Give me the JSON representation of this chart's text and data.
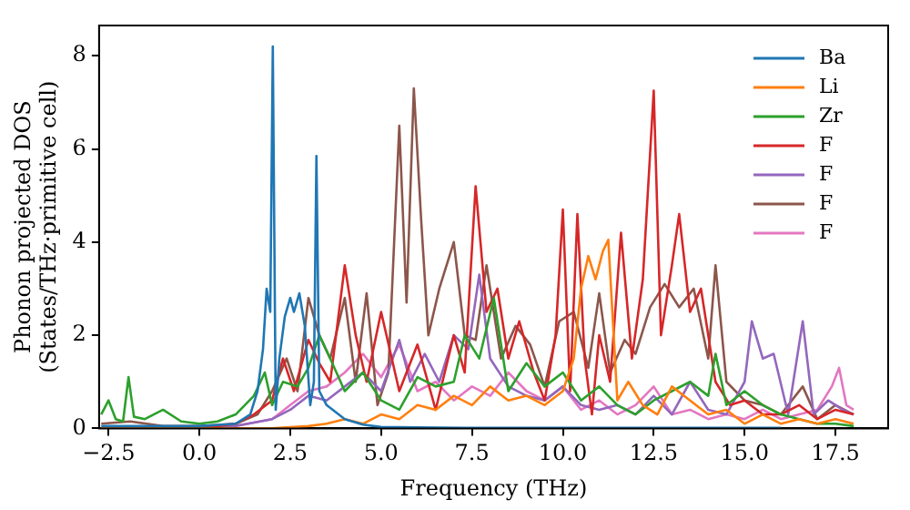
{
  "chart_data": {
    "type": "line",
    "xlabel": "Frequency (THz)",
    "ylabel": "Phonon projected DOS\n(States/THz·primitive cell)",
    "xlim": [
      -2.76,
      18.95
    ],
    "ylim": [
      0,
      8.65
    ],
    "xticks": [
      {
        "value": -2.5,
        "label": "−2.5"
      },
      {
        "value": 0,
        "label": "0.0"
      },
      {
        "value": 2.5,
        "label": "2.5"
      },
      {
        "value": 5,
        "label": "5.0"
      },
      {
        "value": 7.5,
        "label": "7.5"
      },
      {
        "value": 10,
        "label": "10.0"
      },
      {
        "value": 12.5,
        "label": "12.5"
      },
      {
        "value": 15,
        "label": "15.0"
      },
      {
        "value": 17.5,
        "label": "17.5"
      }
    ],
    "yticks": [
      0,
      2,
      4,
      6,
      8
    ],
    "grid": false,
    "legend": "top right",
    "marker": "none",
    "line_style": "solid",
    "series": [
      {
        "name": "Ba",
        "color": "#1f77b4",
        "x": [
          -2.7,
          -1,
          0,
          1,
          1.4,
          1.6,
          1.75,
          1.85,
          1.95,
          2.02,
          2.1,
          2.2,
          2.35,
          2.5,
          2.6,
          2.75,
          2.9,
          3.05,
          3.15,
          3.22,
          3.3,
          3.5,
          4,
          4.5,
          5,
          6,
          8,
          10,
          12,
          14,
          16
        ],
        "values": [
          0.05,
          0.05,
          0.05,
          0.1,
          0.3,
          0.8,
          1.7,
          3.0,
          2.5,
          8.2,
          0.4,
          1.5,
          2.4,
          2.8,
          2.5,
          2.9,
          2.2,
          0.5,
          1.0,
          5.85,
          0.8,
          0.5,
          0.2,
          0.08,
          0.03,
          0.02,
          0.01,
          0.01,
          0.01,
          0.01,
          0.01
        ]
      },
      {
        "name": "Li",
        "color": "#ff7f0e",
        "x": [
          -2.7,
          0,
          2,
          3,
          3.5,
          4,
          4.5,
          5,
          5.5,
          6,
          6.5,
          7,
          7.5,
          8,
          8.5,
          9,
          9.5,
          10,
          10.3,
          10.5,
          10.7,
          10.9,
          11.1,
          11.25,
          11.5,
          11.8,
          12.2,
          12.6,
          13,
          13.5,
          14,
          14.5,
          15,
          15.5,
          16,
          16.5,
          17,
          17.5,
          18
        ],
        "values": [
          0,
          0,
          0,
          0.05,
          0.1,
          0.2,
          0.1,
          0.3,
          0.2,
          0.5,
          0.4,
          0.7,
          0.5,
          0.9,
          0.6,
          0.7,
          0.5,
          0.8,
          1.5,
          3.0,
          3.7,
          3.2,
          3.8,
          4.05,
          0.6,
          1.0,
          0.5,
          0.3,
          0.9,
          0.6,
          0.3,
          0.4,
          0.1,
          0.3,
          0.1,
          0.2,
          0.1,
          0.2,
          0.1
        ]
      },
      {
        "name": "Zr",
        "color": "#2ca02c",
        "x": [
          -2.7,
          -2.5,
          -2.3,
          -2.1,
          -1.95,
          -1.8,
          -1.5,
          -1,
          -0.5,
          0,
          0.5,
          1,
          1.5,
          1.8,
          2.0,
          2.3,
          2.7,
          3.0,
          3.3,
          3.6,
          4,
          4.5,
          5,
          5.5,
          6,
          6.5,
          7,
          7.3,
          7.7,
          8.1,
          8.5,
          9,
          9.5,
          10,
          10.5,
          11,
          11.5,
          12,
          12.5,
          13,
          13.5,
          14,
          14.2,
          14.5,
          15,
          15.5,
          16,
          16.5,
          17,
          17.5,
          18
        ],
        "values": [
          0.3,
          0.6,
          0.2,
          0.15,
          1.1,
          0.25,
          0.2,
          0.4,
          0.15,
          0.1,
          0.15,
          0.3,
          0.7,
          1.2,
          0.5,
          1.0,
          0.9,
          1.3,
          2.0,
          1.5,
          0.8,
          1.2,
          0.6,
          0.4,
          1.1,
          0.9,
          1.0,
          2.0,
          1.5,
          2.8,
          0.8,
          1.4,
          0.9,
          1.2,
          0.6,
          0.9,
          0.5,
          0.3,
          0.6,
          0.8,
          1.0,
          0.7,
          1.6,
          0.5,
          0.8,
          0.5,
          0.3,
          0.2,
          0.1,
          0.1,
          0.05
        ]
      },
      {
        "name": "F",
        "color": "#d62728",
        "x": [
          -2.7,
          0,
          1,
          1.5,
          2.0,
          2.3,
          2.6,
          3.0,
          3.3,
          3.6,
          4.0,
          4.3,
          4.6,
          5.0,
          5.5,
          6.0,
          6.5,
          7.0,
          7.3,
          7.6,
          7.9,
          8.2,
          8.5,
          8.8,
          9.2,
          9.5,
          9.8,
          10.0,
          10.2,
          10.4,
          10.6,
          10.8,
          11.0,
          11.3,
          11.6,
          11.9,
          12.2,
          12.5,
          12.7,
          13.0,
          13.2,
          13.5,
          13.8,
          14.2,
          14.6,
          15,
          15.5,
          16,
          16.5,
          17,
          17.5,
          18
        ],
        "values": [
          0,
          0,
          0.1,
          0.3,
          0.6,
          1.5,
          0.8,
          1.9,
          1.4,
          1.0,
          3.5,
          2.0,
          1.0,
          2.5,
          0.8,
          1.8,
          0.4,
          2.0,
          1.2,
          5.2,
          2.5,
          3.0,
          1.5,
          2.3,
          1.2,
          0.6,
          2.0,
          4.7,
          0.8,
          4.6,
          1.5,
          0.3,
          2.0,
          1.0,
          4.2,
          1.5,
          3.2,
          7.25,
          2.0,
          3.5,
          4.6,
          2.5,
          3.0,
          1.0,
          0.5,
          0.6,
          0.3,
          0.3,
          0.5,
          0.2,
          0.4,
          0.3
        ]
      },
      {
        "name": "F",
        "color": "#9467bd",
        "x": [
          -2.7,
          0,
          1,
          2.0,
          2.5,
          3.0,
          3.5,
          4.0,
          4.5,
          5.0,
          5.5,
          5.8,
          6.2,
          6.6,
          7.0,
          7.4,
          7.7,
          8.0,
          8.5,
          9,
          9.5,
          10,
          10.5,
          11,
          11.5,
          12,
          12.5,
          13,
          13.5,
          14,
          14.5,
          15.0,
          15.2,
          15.5,
          15.8,
          16.2,
          16.6,
          16.9,
          17.3,
          17.7,
          18
        ],
        "values": [
          0,
          0,
          0.05,
          0.2,
          0.4,
          0.7,
          0.6,
          0.9,
          1.2,
          0.8,
          1.9,
          1.0,
          1.6,
          1.0,
          2.0,
          1.7,
          3.3,
          1.5,
          0.9,
          0.7,
          0.6,
          0.9,
          0.5,
          0.4,
          0.5,
          0.3,
          0.7,
          0.3,
          1.0,
          0.4,
          0.3,
          1.0,
          2.3,
          1.5,
          1.6,
          0.3,
          2.3,
          0.3,
          0.6,
          0.4,
          0.3
        ]
      },
      {
        "name": "F",
        "color": "#8c564b",
        "x": [
          -2.7,
          -1.9,
          -1,
          0,
          1,
          1.6,
          2.0,
          2.4,
          2.7,
          3.0,
          3.3,
          3.6,
          4.0,
          4.3,
          4.6,
          4.9,
          5.2,
          5.5,
          5.7,
          5.9,
          6.1,
          6.3,
          6.6,
          7.0,
          7.3,
          7.6,
          7.9,
          8.3,
          8.7,
          9.1,
          9.5,
          9.9,
          10.3,
          10.7,
          11.0,
          11.3,
          11.7,
          12.0,
          12.4,
          12.8,
          13.2,
          13.6,
          14.0,
          14.2,
          14.5,
          15,
          15.5,
          16,
          16.6,
          17,
          17.5,
          18
        ],
        "values": [
          0.1,
          0.15,
          0.05,
          0.05,
          0.1,
          0.3,
          0.8,
          1.5,
          0.8,
          2.8,
          2.0,
          1.5,
          2.8,
          1.0,
          2.9,
          0.5,
          1.2,
          6.5,
          2.7,
          7.3,
          4.5,
          2.0,
          3.0,
          4.0,
          2.0,
          1.9,
          3.5,
          1.5,
          2.2,
          1.8,
          0.9,
          2.3,
          2.5,
          1.3,
          2.9,
          1.2,
          1.9,
          1.6,
          2.6,
          3.1,
          2.6,
          3.0,
          1.5,
          3.5,
          1.0,
          0.6,
          0.5,
          0.3,
          0.9,
          0.2,
          0.5,
          0.3
        ]
      },
      {
        "name": "F",
        "color": "#e377c2",
        "x": [
          -2.7,
          0,
          1,
          2.0,
          2.5,
          3.0,
          3.5,
          4.0,
          4.5,
          5.0,
          5.5,
          6.0,
          6.5,
          7.0,
          7.5,
          8,
          8.5,
          9,
          9.5,
          10,
          10.5,
          11,
          11.5,
          12,
          12.5,
          13,
          13.5,
          14,
          14.5,
          15,
          15.5,
          16,
          16.5,
          17,
          17.4,
          17.6,
          17.8,
          18
        ],
        "values": [
          0,
          0,
          0.05,
          0.2,
          0.5,
          0.8,
          0.9,
          1.2,
          1.6,
          1.1,
          1.8,
          0.8,
          1.0,
          0.6,
          0.9,
          0.7,
          1.2,
          0.8,
          0.6,
          0.9,
          0.4,
          0.6,
          0.3,
          0.5,
          0.9,
          0.3,
          0.4,
          0.2,
          0.3,
          0.2,
          0.4,
          0.2,
          0.3,
          0.4,
          0.9,
          1.3,
          0.5,
          0.4
        ]
      }
    ]
  }
}
